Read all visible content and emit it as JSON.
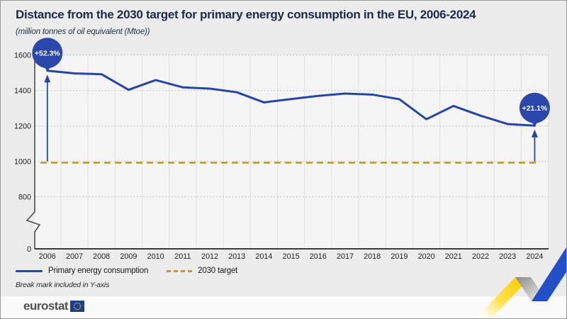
{
  "header": {
    "title": "Distance from the 2030 target for primary energy consumption in the EU, 2006-2024",
    "subtitle": "(million tonnes of oil equivalent (Mtoe))"
  },
  "chart_data": {
    "type": "line",
    "x": [
      2006,
      2007,
      2008,
      2009,
      2010,
      2011,
      2012,
      2013,
      2014,
      2015,
      2016,
      2017,
      2018,
      2019,
      2020,
      2021,
      2022,
      2023,
      2024
    ],
    "series": [
      {
        "name": "Primary energy consumption",
        "style": "solid",
        "color": "#2346a8",
        "values": [
          1512,
          1497,
          1492,
          1404,
          1459,
          1418,
          1411,
          1390,
          1333,
          1352,
          1370,
          1383,
          1377,
          1351,
          1238,
          1313,
          1258,
          1211,
          1202
        ]
      },
      {
        "name": "2030 target",
        "style": "dashed",
        "color": "#c49b26",
        "constant": 992.5
      }
    ],
    "ylabel": "",
    "xlabel": "",
    "unit": "Mtoe",
    "yticks": [
      0,
      800,
      1000,
      1200,
      1400,
      1600
    ],
    "ylim": [
      0,
      1650
    ],
    "axis_break_in_y": true,
    "grid": true,
    "legend_position": "bottom",
    "annotations": [
      {
        "x": 2006,
        "label": "+52.3%"
      },
      {
        "x": 2024,
        "label": "+21.1%"
      }
    ]
  },
  "legend": {
    "items": [
      {
        "label": "Primary energy consumption",
        "swatch": "line"
      },
      {
        "label": "2030 target",
        "swatch": "dashed"
      }
    ]
  },
  "note": "Break mark included in Y-axis",
  "footer": {
    "logo_text": "eurostat"
  },
  "colors": {
    "line_blue": "#2346a8",
    "badge_blue": "#2a47ab",
    "target_gold": "#c49b26",
    "title_navy": "#1b2a4a",
    "page_bg": "#ececec",
    "plot_bg": "#f5f5f5",
    "footer_bg": "#fafafa",
    "ribbon_yellow": "#ffd617",
    "ribbon_blue": "#2350c8",
    "eu_flag_blue": "#1c3f94"
  }
}
